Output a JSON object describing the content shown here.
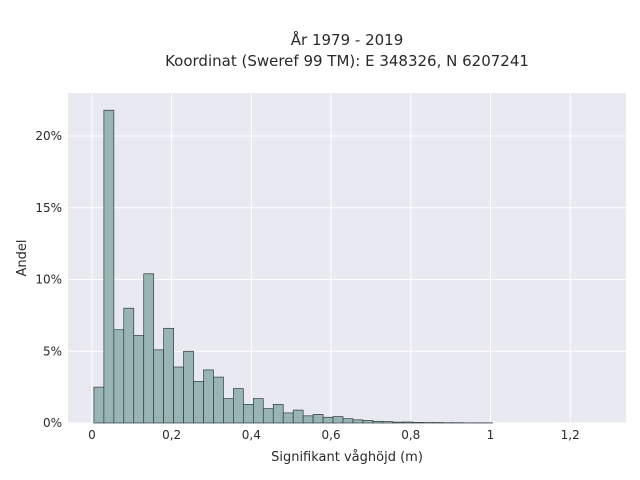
{
  "chart_data": {
    "type": "bar",
    "title_line1": "År 1979 - 2019",
    "title_line2": "Koordinat (Sweref 99 TM): E 348326, N 6207241",
    "xlabel": "Signifikant våghöjd (m)",
    "ylabel": "Andel",
    "xlim": [
      -0.06,
      1.34
    ],
    "ylim": [
      0,
      0.23
    ],
    "x_ticks": [
      {
        "value": 0,
        "label": "0"
      },
      {
        "value": 0.2,
        "label": "0,2"
      },
      {
        "value": 0.4,
        "label": "0,4"
      },
      {
        "value": 0.6,
        "label": "0,6"
      },
      {
        "value": 0.8,
        "label": "0,8"
      },
      {
        "value": 1.0,
        "label": "1"
      },
      {
        "value": 1.2,
        "label": "1,2"
      }
    ],
    "y_ticks": [
      {
        "value": 0,
        "label": "0%"
      },
      {
        "value": 0.05,
        "label": "5%"
      },
      {
        "value": 0.1,
        "label": "10%"
      },
      {
        "value": 0.15,
        "label": "15%"
      },
      {
        "value": 0.2,
        "label": "20%"
      }
    ],
    "grid": true,
    "bin_width": 0.025,
    "bin_start": 0.005,
    "values": [
      0.025,
      0.218,
      0.065,
      0.08,
      0.061,
      0.104,
      0.051,
      0.066,
      0.039,
      0.05,
      0.029,
      0.037,
      0.032,
      0.017,
      0.024,
      0.013,
      0.017,
      0.01,
      0.013,
      0.007,
      0.009,
      0.005,
      0.006,
      0.004,
      0.0045,
      0.003,
      0.0022,
      0.0018,
      0.0012,
      0.001,
      0.0006,
      0.0007,
      0.0004,
      0.0003,
      0.0003,
      0.0002,
      0.0002,
      0.0001,
      0.0001,
      0.0001
    ],
    "colors": {
      "bar_fill": "#98b5b4",
      "bar_edge": "#2f3d3c",
      "plot_bg": "#e9e9f1",
      "grid": "#ffffff"
    }
  }
}
